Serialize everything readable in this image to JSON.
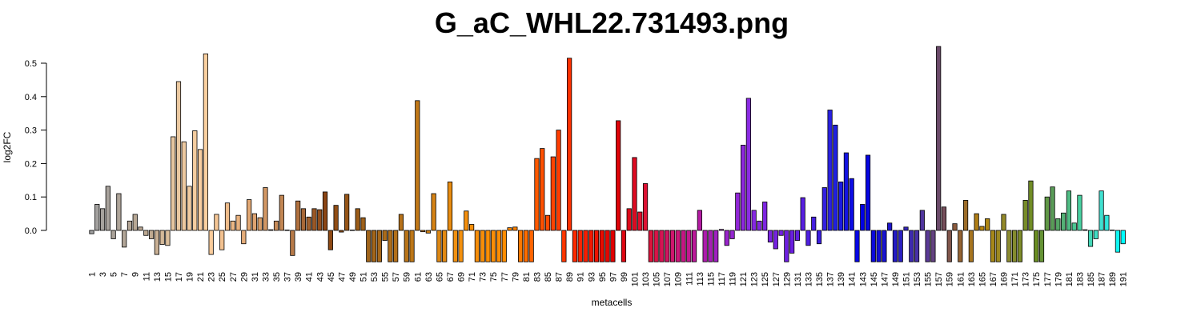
{
  "chart_data": {
    "type": "bar",
    "title": "G_aC_WHL22.731493.png",
    "xlabel": "metacells",
    "ylabel": "log2FC",
    "ylim": [
      -0.094,
      0.55
    ],
    "yticks": [
      0.0,
      0.1,
      0.2,
      0.3,
      0.4,
      0.5
    ],
    "ytick_labels": [
      "0.0",
      "0.1",
      "0.2",
      "0.3",
      "0.4",
      "0.5"
    ],
    "grid": false,
    "categories": [
      "1",
      "2",
      "3",
      "4",
      "5",
      "6",
      "7",
      "8",
      "9",
      "10",
      "11",
      "12",
      "13",
      "14",
      "15",
      "16",
      "17",
      "18",
      "19",
      "20",
      "21",
      "22",
      "23",
      "24",
      "25",
      "26",
      "27",
      "28",
      "29",
      "30",
      "31",
      "32",
      "33",
      "34",
      "35",
      "36",
      "37",
      "38",
      "39",
      "40",
      "41",
      "42",
      "43",
      "44",
      "45",
      "46",
      "47",
      "48",
      "49",
      "50",
      "51",
      "52",
      "53",
      "54",
      "55",
      "56",
      "57",
      "58",
      "59",
      "60",
      "61",
      "62",
      "63",
      "64",
      "65",
      "66",
      "67",
      "68",
      "69",
      "70",
      "71",
      "72",
      "73",
      "74",
      "75",
      "76",
      "77",
      "78",
      "79",
      "80",
      "81",
      "82",
      "83",
      "84",
      "85",
      "86",
      "87",
      "88",
      "89",
      "90",
      "91",
      "92",
      "93",
      "94",
      "95",
      "96",
      "97",
      "98",
      "99",
      "100",
      "101",
      "102",
      "103",
      "104",
      "105",
      "106",
      "107",
      "108",
      "109",
      "110",
      "111",
      "112",
      "113",
      "114",
      "115",
      "116",
      "117",
      "118",
      "119",
      "120",
      "121",
      "122",
      "123",
      "124",
      "125",
      "126",
      "127",
      "128",
      "129",
      "130",
      "131",
      "132",
      "133",
      "134",
      "135",
      "136",
      "137",
      "138",
      "139",
      "140",
      "141",
      "142",
      "143",
      "144",
      "145",
      "146",
      "147",
      "148",
      "149",
      "150",
      "151",
      "152",
      "153",
      "154",
      "155",
      "156",
      "157",
      "158",
      "159",
      "160",
      "161",
      "162",
      "163",
      "164",
      "165",
      "166",
      "167",
      "168",
      "169",
      "170",
      "171",
      "172",
      "173",
      "174",
      "175",
      "176",
      "177",
      "178",
      "179",
      "180",
      "181",
      "182",
      "183",
      "184",
      "185",
      "186",
      "187",
      "188",
      "189",
      "190",
      "191"
    ],
    "values": [
      -0.01,
      0.078,
      0.065,
      0.132,
      -0.025,
      0.11,
      -0.05,
      0.028,
      0.048,
      0.01,
      -0.015,
      -0.025,
      -0.072,
      -0.042,
      -0.045,
      0.28,
      0.445,
      0.265,
      0.132,
      0.298,
      0.242,
      0.528,
      -0.072,
      0.048,
      -0.058,
      0.082,
      0.028,
      0.045,
      -0.04,
      0.092,
      0.05,
      0.038,
      0.128,
      0.002,
      0.028,
      0.105,
      0.001,
      -0.075,
      0.088,
      0.065,
      0.04,
      0.065,
      0.062,
      0.115,
      -0.058,
      0.075,
      -0.005,
      0.108,
      0.001,
      0.065,
      0.038,
      -0.094,
      -0.094,
      -0.094,
      -0.03,
      -0.094,
      -0.094,
      0.048,
      -0.094,
      -0.094,
      0.388,
      -0.004,
      -0.008,
      0.11,
      -0.094,
      -0.094,
      0.145,
      -0.094,
      -0.094,
      0.058,
      0.018,
      -0.094,
      -0.094,
      -0.094,
      -0.094,
      -0.094,
      -0.094,
      0.008,
      0.01,
      -0.094,
      -0.094,
      -0.094,
      0.215,
      0.245,
      0.045,
      0.22,
      0.3,
      -0.094,
      0.515,
      -0.094,
      -0.094,
      -0.094,
      -0.094,
      -0.094,
      -0.094,
      -0.094,
      -0.094,
      0.328,
      -0.094,
      0.065,
      0.218,
      0.055,
      0.14,
      -0.094,
      -0.094,
      -0.094,
      -0.094,
      -0.094,
      -0.094,
      -0.094,
      -0.094,
      -0.094,
      0.06,
      -0.094,
      -0.094,
      -0.094,
      0.003,
      -0.045,
      -0.025,
      0.112,
      0.255,
      0.395,
      0.06,
      0.028,
      0.085,
      -0.035,
      -0.055,
      -0.015,
      -0.094,
      -0.068,
      -0.03,
      0.098,
      -0.045,
      0.04,
      -0.04,
      0.128,
      0.36,
      0.315,
      0.145,
      0.232,
      0.155,
      -0.094,
      0.078,
      0.225,
      -0.094,
      -0.094,
      -0.094,
      0.022,
      -0.094,
      -0.094,
      0.01,
      -0.094,
      -0.094,
      0.06,
      -0.094,
      -0.094,
      0.55,
      0.07,
      -0.094,
      0.02,
      -0.094,
      0.09,
      -0.094,
      0.05,
      0.012,
      0.035,
      -0.094,
      -0.094,
      0.048,
      -0.094,
      -0.094,
      -0.094,
      0.09,
      0.148,
      -0.094,
      -0.094,
      0.1,
      0.13,
      0.035,
      0.052,
      0.118,
      0.022,
      0.105,
      0.002,
      -0.048,
      -0.025,
      0.118,
      0.045,
      0.001,
      -0.065,
      -0.04
    ],
    "xtick_labels_shown": [
      "1",
      "3",
      "5",
      "7",
      "9",
      "11",
      "13",
      "15",
      "17",
      "19",
      "21",
      "23",
      "25",
      "27",
      "29",
      "31",
      "33",
      "35",
      "37",
      "39",
      "41",
      "43",
      "45",
      "47",
      "49",
      "51",
      "53",
      "55",
      "57",
      "59",
      "61",
      "63",
      "65",
      "67",
      "69",
      "71",
      "73",
      "75",
      "77",
      "79",
      "81",
      "83",
      "85",
      "87",
      "89",
      "91",
      "93",
      "95",
      "97",
      "99",
      "101",
      "103",
      "105",
      "107",
      "109",
      "111",
      "113",
      "115",
      "117",
      "119",
      "121",
      "123",
      "125",
      "127",
      "129",
      "131",
      "133",
      "135",
      "137",
      "139",
      "141",
      "143",
      "145",
      "147",
      "149",
      "151",
      "153",
      "155",
      "157",
      "159",
      "161",
      "163",
      "165",
      "167",
      "169",
      "171",
      "173",
      "175",
      "177",
      "179",
      "181",
      "183",
      "185",
      "187",
      "189",
      "191"
    ],
    "palette_anchors": [
      {
        "metacell": 1,
        "color": "#a0a0a0"
      },
      {
        "metacell": 12,
        "color": "#bfa990"
      },
      {
        "metacell": 16,
        "color": "#e6c6a0"
      },
      {
        "metacell": 22,
        "color": "#fbd0a0"
      },
      {
        "metacell": 30,
        "color": "#e2a874"
      },
      {
        "metacell": 38,
        "color": "#b77a48"
      },
      {
        "metacell": 44,
        "color": "#8b4513"
      },
      {
        "metacell": 52,
        "color": "#a0641a"
      },
      {
        "metacell": 61,
        "color": "#c07818"
      },
      {
        "metacell": 68,
        "color": "#f09010"
      },
      {
        "metacell": 78,
        "color": "#ff8c00"
      },
      {
        "metacell": 84,
        "color": "#ff5000"
      },
      {
        "metacell": 90,
        "color": "#ff2a00"
      },
      {
        "metacell": 97,
        "color": "#e00000"
      },
      {
        "metacell": 104,
        "color": "#dc143c"
      },
      {
        "metacell": 110,
        "color": "#c71585"
      },
      {
        "metacell": 116,
        "color": "#a020c0"
      },
      {
        "metacell": 122,
        "color": "#8a2be2"
      },
      {
        "metacell": 130,
        "color": "#6a1ee0"
      },
      {
        "metacell": 138,
        "color": "#2020e0"
      },
      {
        "metacell": 143,
        "color": "#0000e6"
      },
      {
        "metacell": 150,
        "color": "#2a20c0"
      },
      {
        "metacell": 155,
        "color": "#5a3a96"
      },
      {
        "metacell": 157,
        "color": "#6b4a6a"
      },
      {
        "metacell": 160,
        "color": "#8b5a3c"
      },
      {
        "metacell": 165,
        "color": "#b8860b"
      },
      {
        "metacell": 170,
        "color": "#8a8a30"
      },
      {
        "metacell": 175,
        "color": "#6b8e23"
      },
      {
        "metacell": 178,
        "color": "#5a9c58"
      },
      {
        "metacell": 183,
        "color": "#48d0a0"
      },
      {
        "metacell": 187,
        "color": "#40e0d0"
      },
      {
        "metacell": 191,
        "color": "#00ffff"
      }
    ],
    "bar_border_color": "#000000"
  }
}
